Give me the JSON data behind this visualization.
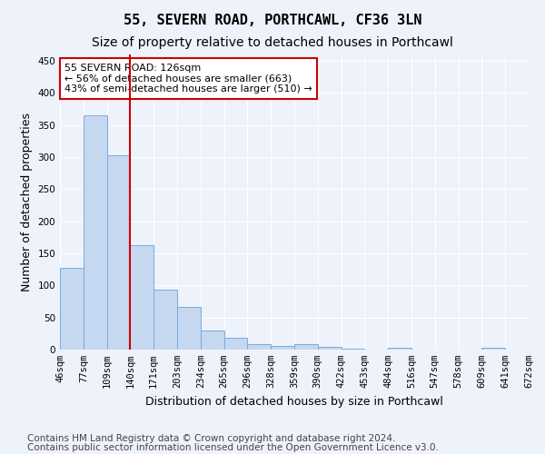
{
  "title1": "55, SEVERN ROAD, PORTHCAWL, CF36 3LN",
  "title2": "Size of property relative to detached houses in Porthcawl",
  "xlabel": "Distribution of detached houses by size in Porthcawl",
  "ylabel": "Number of detached properties",
  "bin_labels": [
    "46sqm",
    "77sqm",
    "109sqm",
    "140sqm",
    "171sqm",
    "203sqm",
    "234sqm",
    "265sqm",
    "296sqm",
    "328sqm",
    "359sqm",
    "390sqm",
    "422sqm",
    "453sqm",
    "484sqm",
    "516sqm",
    "547sqm",
    "578sqm",
    "609sqm",
    "641sqm",
    "672sqm"
  ],
  "values": [
    127,
    365,
    303,
    163,
    93,
    66,
    30,
    18,
    9,
    6,
    8,
    4,
    1,
    0,
    3,
    0,
    0,
    0,
    3,
    0
  ],
  "bar_color": "#c5d8f0",
  "bar_edge_color": "#7aaadc",
  "vline_x_index": 2.5,
  "vline_color": "#cc0000",
  "annotation_text": "55 SEVERN ROAD: 126sqm\n← 56% of detached houses are smaller (663)\n43% of semi-detached houses are larger (510) →",
  "annotation_box_color": "white",
  "annotation_box_edge": "#cc0000",
  "ylim": [
    0,
    460
  ],
  "yticks": [
    0,
    50,
    100,
    150,
    200,
    250,
    300,
    350,
    400,
    450
  ],
  "footer1": "Contains HM Land Registry data © Crown copyright and database right 2024.",
  "footer2": "Contains public sector information licensed under the Open Government Licence v3.0.",
  "bg_color": "#eef2fb",
  "plot_bg_color": "#eef2fb",
  "title1_fontsize": 11,
  "title2_fontsize": 10,
  "axis_label_fontsize": 9,
  "tick_fontsize": 7.5,
  "footer_fontsize": 7.5
}
